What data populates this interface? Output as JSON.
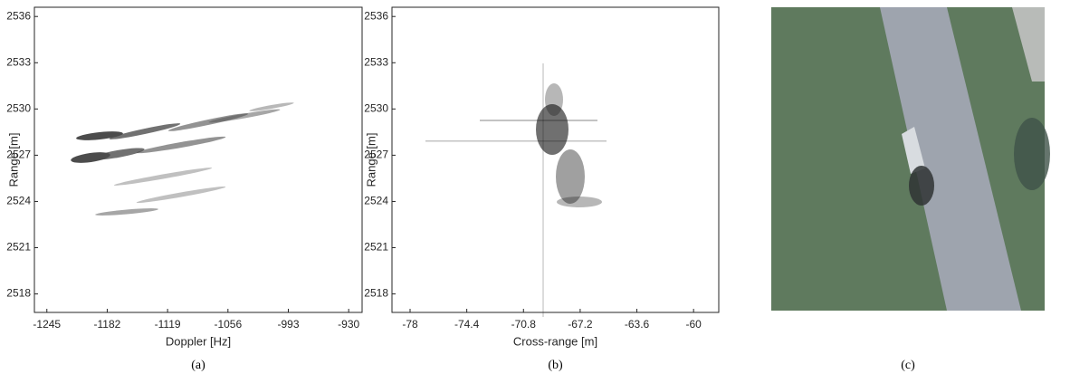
{
  "chart_data": [
    {
      "type": "heatmap",
      "caption": "(a)",
      "xlabel": "Doppler [Hz]",
      "ylabel": "Range [m]",
      "xlim": [
        -1258,
        -916
      ],
      "xticks": [
        -1245,
        -1182,
        -1119,
        -1056,
        -993,
        -930
      ],
      "ylim": [
        2516.8,
        2536.6
      ],
      "yticks": [
        2518,
        2521,
        2524,
        2527,
        2530,
        2533,
        2536
      ]
    },
    {
      "type": "heatmap",
      "caption": "(b)",
      "xlabel": "Cross-range [m]",
      "ylabel": "Range [m]",
      "xlim": [
        -79.15,
        -58.4
      ],
      "xticks": [
        -78,
        -74.4,
        -70.8,
        -67.2,
        -63.6,
        -60
      ],
      "ylim": [
        2516.8,
        2536.6
      ],
      "yticks": [
        2518,
        2521,
        2524,
        2527,
        2530,
        2533,
        2536
      ]
    },
    {
      "type": "image",
      "caption": "(c)"
    }
  ]
}
